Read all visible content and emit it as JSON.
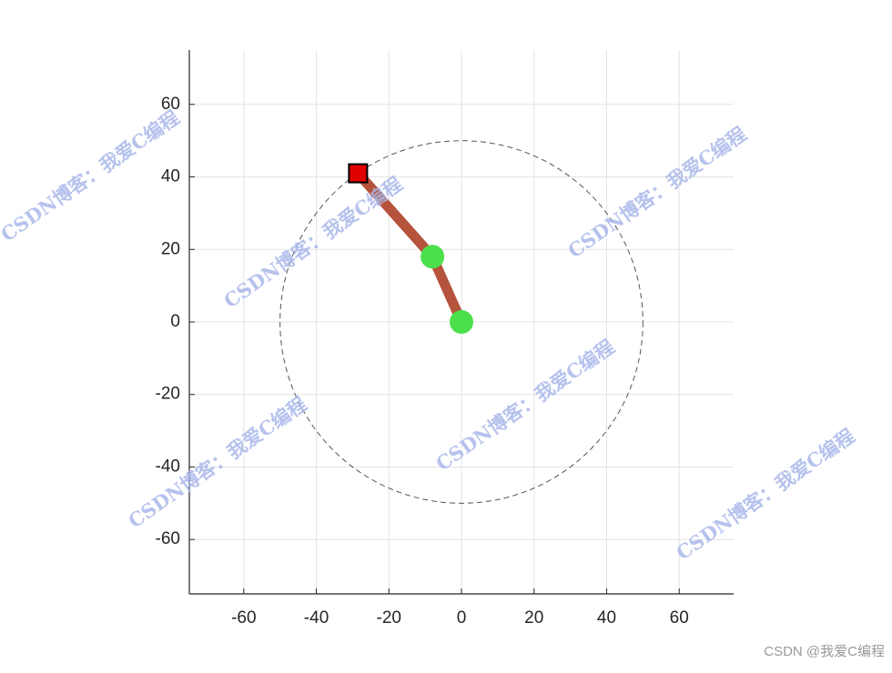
{
  "chart_data": {
    "type": "line",
    "x": [
      0,
      -8,
      -28.5
    ],
    "series": [
      {
        "color": "#b5533c",
        "values": [
          0,
          18,
          41
        ]
      }
    ],
    "joints": {
      "x": [
        0,
        -8
      ],
      "y": [
        0,
        18
      ],
      "color": "#4cdf4c"
    },
    "end_effector": {
      "x": -28.5,
      "y": 41,
      "color": "#e00000"
    },
    "workspace_radius": 50,
    "xlim": [
      -75,
      75
    ],
    "ylim": [
      -75,
      75
    ],
    "xticks": [
      -60,
      -40,
      -20,
      0,
      20,
      40,
      60
    ],
    "yticks": [
      -60,
      -40,
      -20,
      0,
      20,
      40,
      60
    ],
    "grid": true,
    "watermark": "CSDN博客：我爱C编程",
    "footer": "CSDN @我爱C编程"
  }
}
